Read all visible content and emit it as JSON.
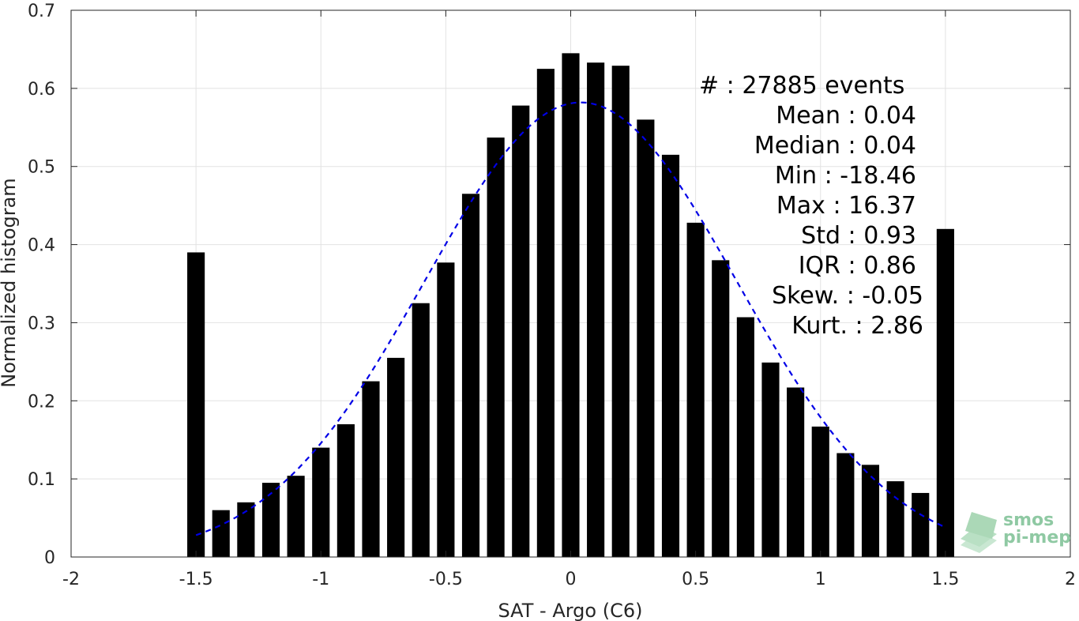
{
  "chart_data": {
    "type": "bar",
    "xlabel": "SAT - Argo (C6)",
    "ylabel": "Normalized histogram",
    "xlim": [
      -2,
      2
    ],
    "ylim": [
      0,
      0.7
    ],
    "x_ticks": [
      -2,
      -1.5,
      -1,
      -0.5,
      0,
      0.5,
      1,
      1.5,
      2
    ],
    "x_tick_labels": [
      "-2",
      "-1.5",
      "-1",
      "-0.5",
      "0",
      "0.5",
      "1",
      "1.5",
      "2"
    ],
    "y_ticks": [
      0,
      0.1,
      0.2,
      0.3,
      0.4,
      0.5,
      0.6,
      0.7
    ],
    "y_tick_labels": [
      "0",
      "0.1",
      "0.2",
      "0.3",
      "0.4",
      "0.5",
      "0.6",
      "0.7"
    ],
    "grid": true,
    "bar_color": "#000000",
    "bins": [
      -1.5,
      -1.4,
      -1.3,
      -1.2,
      -1.1,
      -1.0,
      -0.9,
      -0.8,
      -0.7,
      -0.6,
      -0.5,
      -0.4,
      -0.3,
      -0.2,
      -0.1,
      0.0,
      0.1,
      0.2,
      0.3,
      0.4,
      0.5,
      0.6,
      0.7,
      0.8,
      0.9,
      1.0,
      1.1,
      1.2,
      1.3,
      1.4,
      1.5
    ],
    "values": [
      0.39,
      0.06,
      0.07,
      0.095,
      0.104,
      0.14,
      0.17,
      0.225,
      0.255,
      0.325,
      0.377,
      0.465,
      0.537,
      0.578,
      0.625,
      0.645,
      0.633,
      0.629,
      0.56,
      0.515,
      0.428,
      0.38,
      0.307,
      0.249,
      0.217,
      0.167,
      0.133,
      0.118,
      0.097,
      0.082,
      0.42
    ],
    "fit_curve": {
      "type": "gaussian",
      "style": "dashed",
      "color": "#0000e6",
      "x_range": [
        -1.5,
        1.5
      ],
      "peak_x": 0.04,
      "peak_y": 0.582,
      "sigma": 0.625
    }
  },
  "stats_box": {
    "lines": [
      "#  : 27885 events",
      "Mean : 0.04",
      "Median : 0.04",
      "Min : -18.46",
      "Max : 16.37",
      "Std : 0.93",
      "IQR : 0.86",
      "Skew. : -0.05",
      "Kurt. : 2.86"
    ]
  },
  "watermark": {
    "line1": "smos",
    "line2": "pi-mep",
    "color": "#8fc9a3"
  }
}
